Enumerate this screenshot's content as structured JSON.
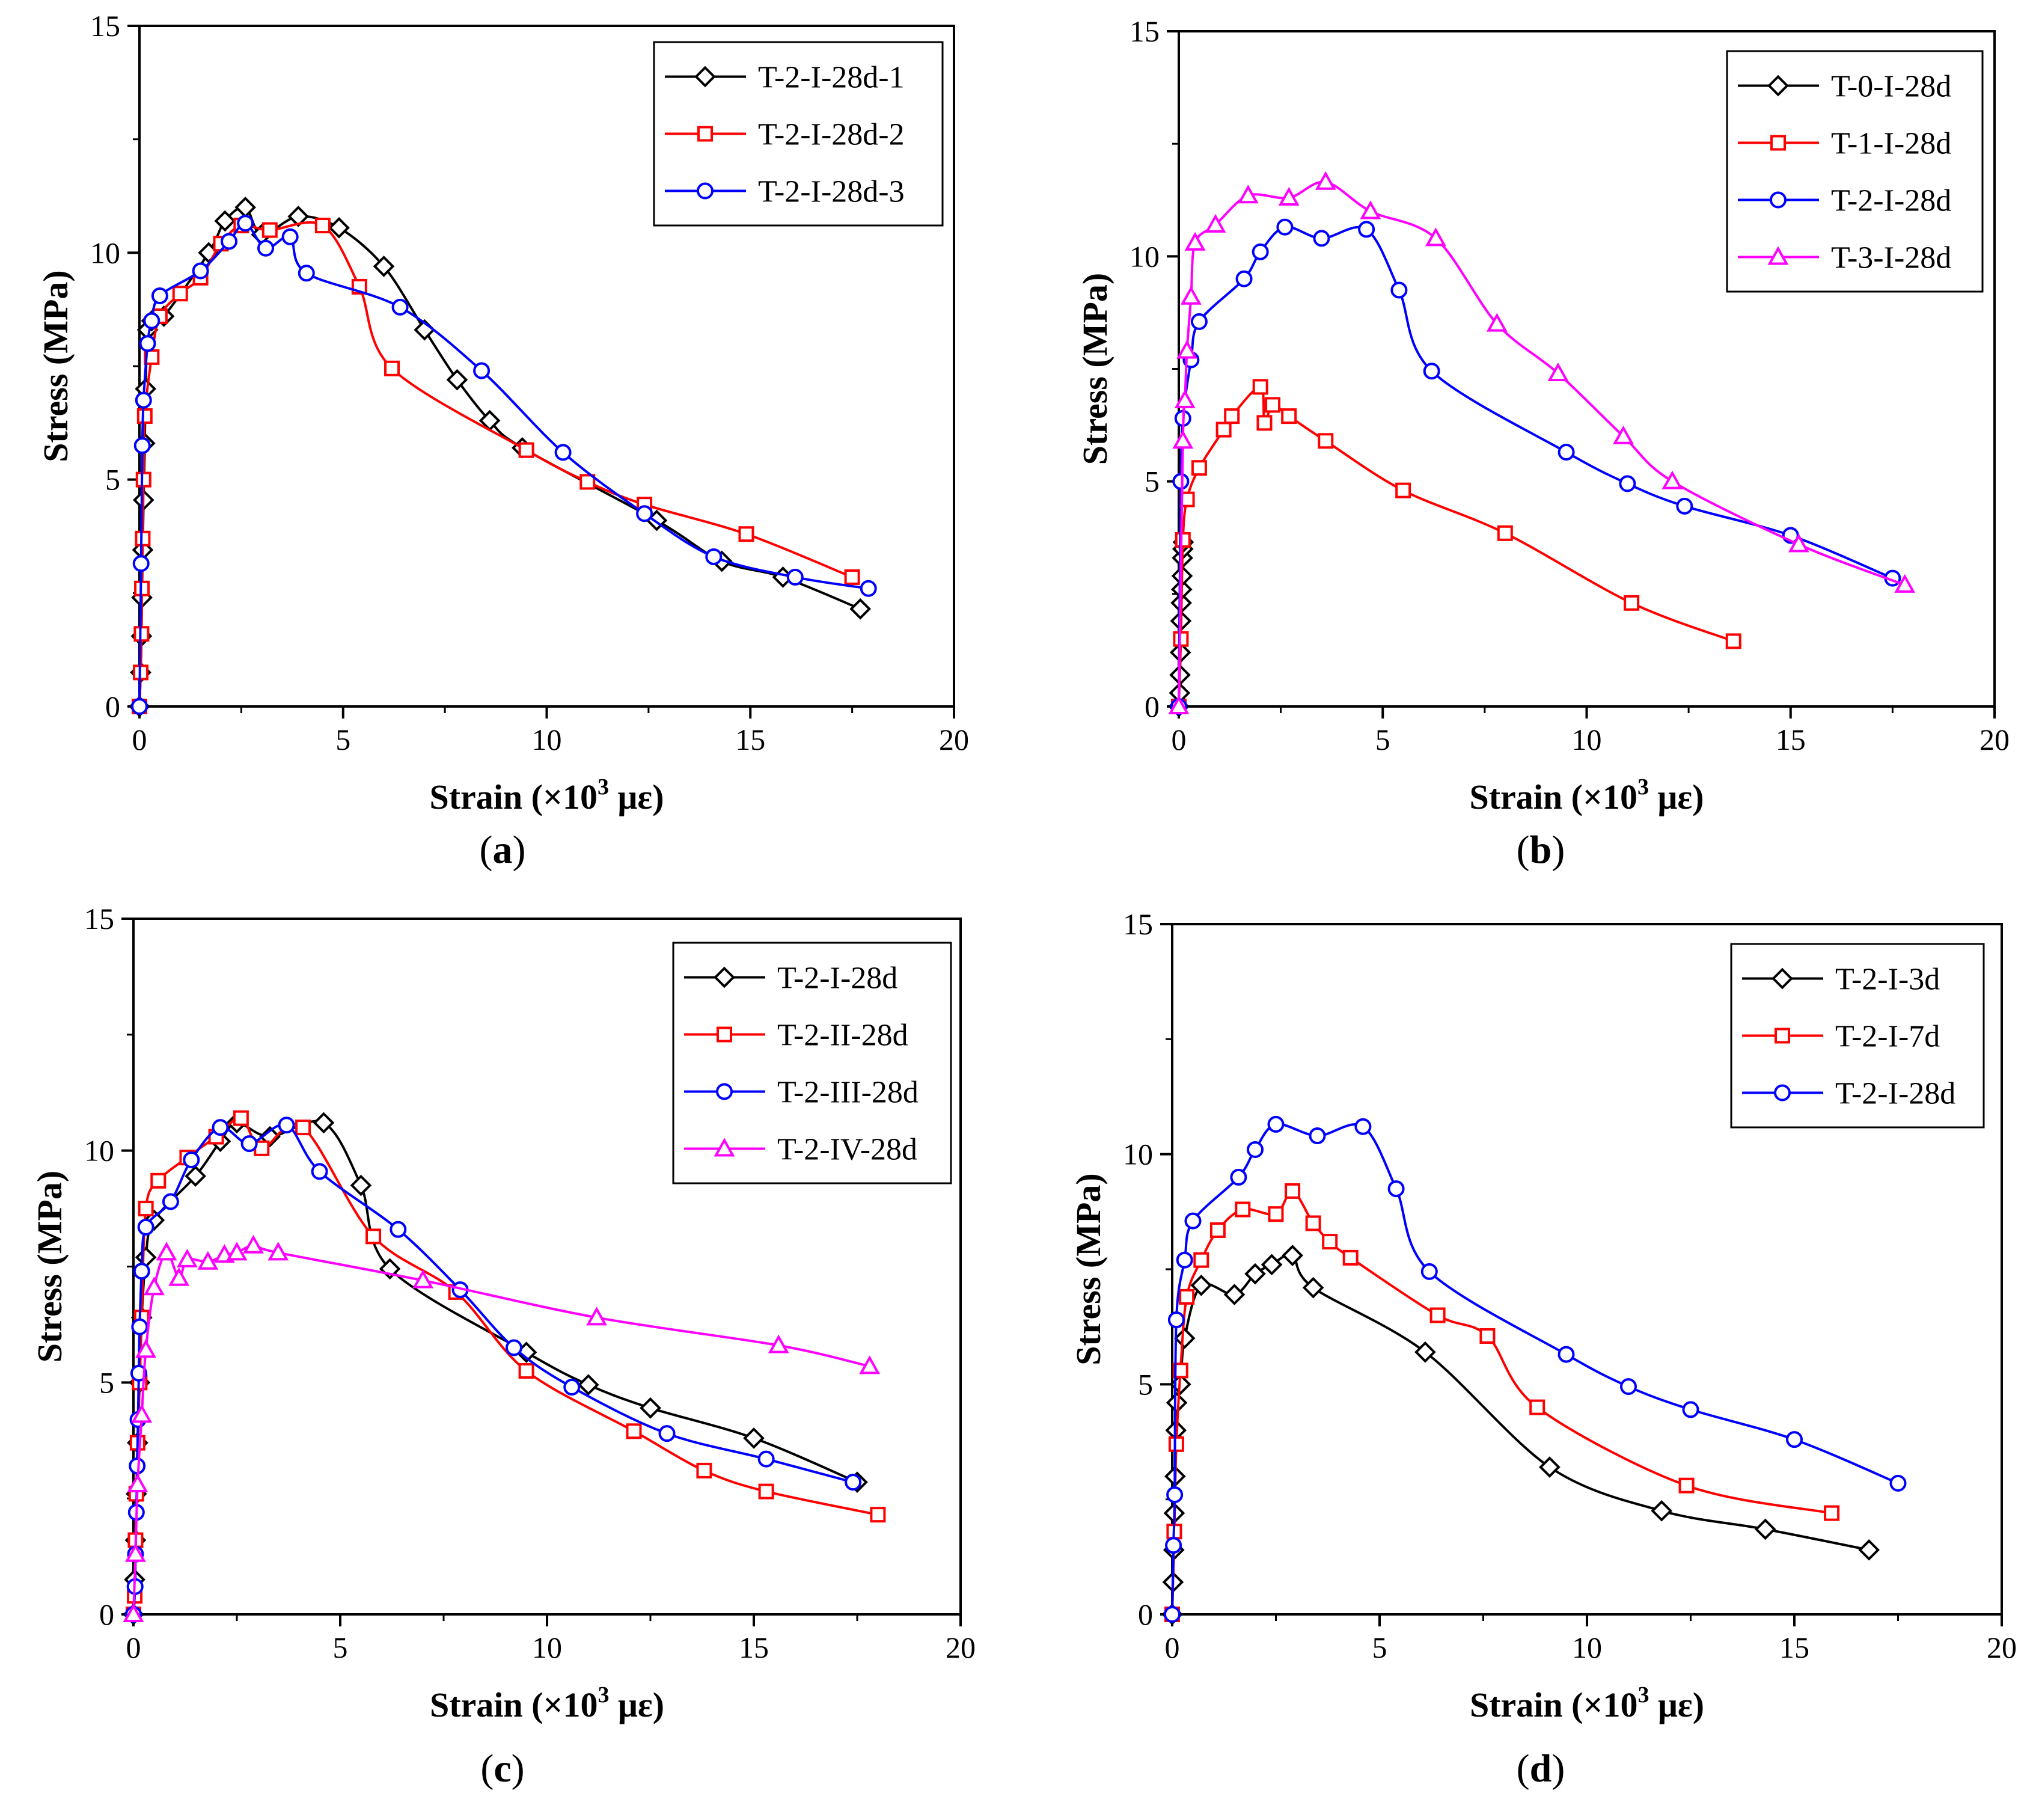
{
  "chart_data": [
    {
      "type": "line",
      "panel_label": "a",
      "xlabel": "Strain (×10³ με)",
      "xlabel_main": "Strain (×10",
      "xlabel_sup": "3",
      "xlabel_unit": " με)",
      "ylabel": "Stress (MPa)",
      "xlim": [
        0,
        20
      ],
      "ylim": [
        0,
        15
      ],
      "xticks": [
        "0",
        "5",
        "10",
        "15",
        "20"
      ],
      "yticks": [
        "0",
        "5",
        "10",
        "15"
      ],
      "legend_position": "top-right",
      "series": [
        {
          "name": "T-2-I-28d-1",
          "color": "#000000",
          "marker": "diamond",
          "x": [
            0,
            0.03,
            0.05,
            0.06,
            0.08,
            0.1,
            0.13,
            0.15,
            0.2,
            0.3,
            0.6,
            1.7,
            2.1,
            2.6,
            3.0,
            3.9,
            4.9,
            6.0,
            7.0,
            7.8,
            8.6,
            9.4,
            12.7,
            14.3,
            15.8,
            17.7
          ],
          "y": [
            0,
            0.75,
            1.55,
            2.4,
            3.45,
            4.55,
            5.8,
            7.0,
            8.3,
            8.5,
            8.6,
            10.0,
            10.7,
            11.0,
            10.4,
            10.8,
            10.55,
            9.7,
            8.3,
            7.2,
            6.3,
            5.7,
            4.1,
            3.2,
            2.85,
            2.15
          ]
        },
        {
          "name": "T-2-I-28d-2",
          "color": "#ff0000",
          "marker": "square",
          "x": [
            0,
            0.03,
            0.05,
            0.06,
            0.08,
            0.1,
            0.13,
            0.3,
            0.5,
            1.0,
            1.5,
            2.0,
            2.5,
            3.2,
            4.5,
            5.4,
            6.2,
            9.5,
            11.0,
            12.4,
            14.9,
            17.5
          ],
          "y": [
            0,
            0.75,
            1.6,
            2.6,
            3.7,
            5.0,
            6.4,
            7.7,
            8.6,
            9.1,
            9.45,
            10.2,
            10.6,
            10.5,
            10.6,
            9.25,
            7.45,
            5.65,
            4.95,
            4.45,
            3.8,
            2.85
          ]
        },
        {
          "name": "T-2-I-28d-3",
          "color": "#0000ff",
          "marker": "circle",
          "x": [
            0,
            0.04,
            0.07,
            0.1,
            0.2,
            0.3,
            0.5,
            1.5,
            2.2,
            2.6,
            3.1,
            3.7,
            4.1,
            6.4,
            8.4,
            10.4,
            12.4,
            14.1,
            16.1,
            17.9
          ],
          "y": [
            0,
            3.15,
            5.75,
            6.75,
            8.0,
            8.5,
            9.05,
            9.6,
            10.25,
            10.65,
            10.1,
            10.35,
            9.55,
            8.8,
            7.4,
            5.6,
            4.25,
            3.3,
            2.85,
            2.6
          ]
        }
      ]
    },
    {
      "type": "line",
      "panel_label": "b",
      "xlabel": "Strain (×10³ με)",
      "xlabel_main": "Strain (×10",
      "xlabel_sup": "3",
      "xlabel_unit": " με)",
      "ylabel": "Stress (MPa)",
      "xlim": [
        0,
        20
      ],
      "ylim": [
        0,
        15
      ],
      "xticks": [
        "0",
        "5",
        "10",
        "15",
        "20"
      ],
      "yticks": [
        "0",
        "5",
        "10",
        "15"
      ],
      "legend_position": "top-right",
      "series": [
        {
          "name": "T-0-I-28d",
          "color": "#000000",
          "marker": "diamond",
          "x": [
            0,
            0.02,
            0.03,
            0.04,
            0.05,
            0.06,
            0.07,
            0.08,
            0.09,
            0.1,
            0.11
          ],
          "y": [
            0,
            0.3,
            0.7,
            1.2,
            1.9,
            2.3,
            2.6,
            2.9,
            3.3,
            3.5,
            3.65
          ]
        },
        {
          "name": "T-1-I-28d",
          "color": "#ff0000",
          "marker": "square",
          "x": [
            0,
            0.05,
            0.1,
            0.2,
            0.5,
            1.1,
            1.3,
            2.0,
            2.1,
            2.3,
            2.7,
            3.6,
            5.5,
            8.0,
            11.1,
            13.6
          ],
          "y": [
            0,
            1.5,
            3.7,
            4.6,
            5.3,
            6.15,
            6.45,
            7.1,
            6.3,
            6.7,
            6.45,
            5.9,
            4.8,
            3.85,
            2.3,
            1.45
          ]
        },
        {
          "name": "T-2-I-28d",
          "color": "#0000ff",
          "marker": "circle",
          "x": [
            0,
            0.05,
            0.1,
            0.3,
            0.5,
            1.6,
            2.0,
            2.6,
            3.5,
            4.6,
            5.4,
            6.2,
            9.5,
            11.0,
            12.4,
            15.0,
            17.5
          ],
          "y": [
            0,
            5.0,
            6.4,
            7.7,
            8.55,
            9.5,
            10.1,
            10.65,
            10.4,
            10.6,
            9.25,
            7.45,
            5.65,
            4.95,
            4.45,
            3.8,
            2.85
          ]
        },
        {
          "name": "T-3-I-28d",
          "color": "#ff00ff",
          "marker": "triangle",
          "x": [
            0,
            0.1,
            0.15,
            0.2,
            0.3,
            0.4,
            0.9,
            1.7,
            2.7,
            3.6,
            4.7,
            6.3,
            7.8,
            9.3,
            10.9,
            12.1,
            15.2,
            17.8
          ],
          "y": [
            0,
            5.9,
            6.8,
            7.9,
            9.1,
            10.3,
            10.7,
            11.35,
            11.3,
            11.65,
            11.0,
            10.4,
            8.5,
            7.4,
            6.0,
            5.0,
            3.6,
            2.7
          ]
        }
      ]
    },
    {
      "type": "line",
      "panel_label": "c",
      "xlabel": "Strain (×10³ με)",
      "xlabel_main": "Strain (×10",
      "xlabel_sup": "3",
      "xlabel_unit": " με)",
      "ylabel": "Stress (MPa)",
      "xlim": [
        0,
        20
      ],
      "ylim": [
        0,
        15
      ],
      "xticks": [
        "0",
        "5",
        "10",
        "15",
        "20"
      ],
      "yticks": [
        "0",
        "5",
        "10",
        "15"
      ],
      "legend_position": "top-right",
      "series": [
        {
          "name": "T-2-I-28d",
          "color": "#000000",
          "marker": "diamond",
          "x": [
            0,
            0.03,
            0.05,
            0.07,
            0.1,
            0.15,
            0.2,
            0.3,
            0.5,
            1.5,
            2.1,
            2.5,
            3.3,
            4.6,
            5.5,
            6.2,
            9.5,
            11.0,
            12.5,
            15.0,
            17.5
          ],
          "y": [
            0,
            0.75,
            1.6,
            2.6,
            3.7,
            5.0,
            6.4,
            7.7,
            8.5,
            9.45,
            10.2,
            10.6,
            10.3,
            10.6,
            9.25,
            7.45,
            5.65,
            4.95,
            4.45,
            3.8,
            2.85
          ]
        },
        {
          "name": "T-2-II-28d",
          "color": "#ff0000",
          "marker": "square",
          "x": [
            0,
            0.03,
            0.05,
            0.07,
            0.1,
            0.15,
            0.2,
            0.3,
            0.6,
            1.3,
            2.0,
            2.6,
            3.1,
            4.1,
            5.8,
            7.8,
            9.5,
            12.1,
            13.8,
            15.3,
            18.0
          ],
          "y": [
            0,
            0.4,
            1.6,
            2.6,
            3.7,
            5.0,
            6.4,
            8.75,
            9.35,
            9.85,
            10.3,
            10.7,
            10.05,
            10.5,
            8.15,
            6.95,
            5.25,
            3.95,
            3.1,
            2.65,
            2.15
          ]
        },
        {
          "name": "T-2-III-28d",
          "color": "#0000ff",
          "marker": "circle",
          "x": [
            0,
            0.04,
            0.05,
            0.07,
            0.09,
            0.11,
            0.13,
            0.15,
            0.2,
            0.3,
            0.9,
            1.4,
            2.1,
            2.8,
            3.7,
            4.5,
            6.4,
            7.9,
            9.2,
            10.6,
            12.9,
            15.3,
            17.4
          ],
          "y": [
            0,
            0.6,
            1.3,
            2.2,
            3.2,
            4.2,
            5.2,
            6.2,
            7.4,
            8.35,
            8.9,
            9.8,
            10.5,
            10.15,
            10.55,
            9.55,
            8.3,
            7.0,
            5.75,
            4.9,
            3.9,
            3.35,
            2.85
          ]
        },
        {
          "name": "T-2-IV-28d",
          "color": "#ff00ff",
          "marker": "triangle",
          "x": [
            0,
            0.05,
            0.1,
            0.2,
            0.3,
            0.5,
            0.8,
            1.1,
            1.3,
            1.8,
            2.2,
            2.5,
            2.9,
            3.5,
            7.0,
            11.2,
            15.6,
            17.8
          ],
          "y": [
            0,
            1.3,
            2.8,
            4.3,
            5.7,
            7.05,
            7.8,
            7.25,
            7.65,
            7.6,
            7.75,
            7.8,
            7.95,
            7.8,
            7.2,
            6.4,
            5.8,
            5.35
          ]
        }
      ]
    },
    {
      "type": "line",
      "panel_label": "d",
      "xlabel": "Strain (×10³ με)",
      "xlabel_main": "Strain (×10",
      "xlabel_sup": "3",
      "xlabel_unit": " με)",
      "ylabel": "Stress (MPa)",
      "xlim": [
        0,
        20
      ],
      "ylim": [
        0,
        15
      ],
      "xticks": [
        "0",
        "5",
        "10",
        "15",
        "20"
      ],
      "yticks": [
        "0",
        "5",
        "10",
        "15"
      ],
      "legend_position": "top-right",
      "series": [
        {
          "name": "T-2-I-3d",
          "color": "#000000",
          "marker": "diamond",
          "x": [
            0,
            0.02,
            0.04,
            0.05,
            0.07,
            0.09,
            0.11,
            0.2,
            0.3,
            0.7,
            1.5,
            2.0,
            2.4,
            2.9,
            3.4,
            6.1,
            9.1,
            11.8,
            14.3,
            16.8
          ],
          "y": [
            0,
            0.7,
            1.4,
            2.2,
            3.0,
            4.0,
            4.6,
            5.0,
            6.0,
            7.15,
            6.95,
            7.4,
            7.6,
            7.8,
            7.1,
            5.7,
            3.2,
            2.25,
            1.85,
            1.4
          ]
        },
        {
          "name": "T-2-I-7d",
          "color": "#ff0000",
          "marker": "square",
          "x": [
            0,
            0.05,
            0.1,
            0.2,
            0.35,
            0.7,
            1.1,
            1.7,
            2.5,
            2.9,
            3.4,
            3.8,
            4.3,
            6.4,
            7.6,
            8.8,
            12.4,
            15.9
          ],
          "y": [
            0,
            1.8,
            3.7,
            5.3,
            6.9,
            7.7,
            8.35,
            8.8,
            8.7,
            9.2,
            8.5,
            8.1,
            7.75,
            6.5,
            6.05,
            4.5,
            2.8,
            2.2
          ]
        },
        {
          "name": "T-2-I-28d",
          "color": "#0000ff",
          "marker": "circle",
          "x": [
            0,
            0.03,
            0.06,
            0.1,
            0.3,
            0.5,
            1.6,
            2.0,
            2.5,
            3.5,
            4.6,
            5.4,
            6.2,
            9.5,
            11.0,
            12.5,
            15.0,
            17.5
          ],
          "y": [
            0,
            1.5,
            2.6,
            6.4,
            7.7,
            8.55,
            9.5,
            10.1,
            10.65,
            10.4,
            10.6,
            9.25,
            7.45,
            5.65,
            4.95,
            4.45,
            3.8,
            2.85
          ]
        }
      ]
    }
  ]
}
